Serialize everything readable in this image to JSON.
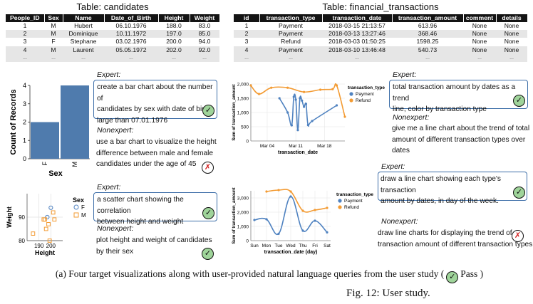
{
  "candidates_table": {
    "title": "Table: candidates",
    "columns": [
      "People_ID",
      "Sex",
      "Name",
      "Date_of_Birth",
      "Height",
      "Weight"
    ],
    "rows": [
      [
        "1",
        "M",
        "Hubert",
        "06.10.1976",
        "188.0",
        "83.0"
      ],
      [
        "2",
        "M",
        "Dominique",
        "10.11.1972",
        "197.0",
        "85.0"
      ],
      [
        "3",
        "F",
        "Stephane",
        "03.02.1976",
        "200.0",
        "94.0"
      ],
      [
        "4",
        "M",
        "Laurent",
        "05.05.1972",
        "202.0",
        "92.0"
      ],
      [
        "...",
        "...",
        "...",
        "...",
        "...",
        "..."
      ]
    ]
  },
  "transactions_table": {
    "title": "Table: financial_transactions",
    "columns": [
      "id",
      "transaction_type",
      "transaction_date",
      "transaction_amount",
      "comment",
      "details"
    ],
    "rows": [
      [
        "1",
        "Payment",
        "2018-03-15 21:13:57",
        "613.96",
        "None",
        "None"
      ],
      [
        "2",
        "Payment",
        "2018-03-13 13:27:46",
        "368.46",
        "None",
        "None"
      ],
      [
        "3",
        "Refund",
        "2018-03-03 01:50:25",
        "1598.25",
        "None",
        "None"
      ],
      [
        "4",
        "Payment",
        "2018-03-10 13:46:48",
        "540.73",
        "None",
        "None"
      ],
      [
        "...",
        "...",
        "...",
        "...",
        "...",
        "..."
      ]
    ]
  },
  "queries": {
    "q1": {
      "expert_label": "Expert:",
      "expert_lines": [
        "create a bar chart about the number of",
        "candidates by sex with date of birth",
        "large than 07.01.1976"
      ],
      "expert_result": "pass",
      "nonexpert_label": "Nonexpert:",
      "nonexpert_lines": [
        "use a bar chart to visualize the height",
        "difference between male and female",
        "candidates under the age of 45"
      ],
      "nonexpert_result": "fail"
    },
    "q2": {
      "expert_label": "Expert:",
      "expert_lines": [
        "a scatter chart showing the correlation",
        "between height and weight"
      ],
      "expert_result": "pass",
      "nonexpert_label": "Nonexpert:",
      "nonexpert_lines": [
        "plot height and weight of candidates",
        "by their sex"
      ],
      "nonexpert_result": "pass"
    },
    "q3": {
      "expert_label": "Expert:",
      "expert_lines": [
        "total transaction amount by dates as a trend",
        "line, color by transaction type"
      ],
      "expert_result": "pass",
      "nonexpert_label": "Nonexpert:",
      "nonexpert_lines": [
        "give me a line chart about the trend of total",
        "amount of different transaction types over",
        "dates"
      ],
      "nonexpert_result": "none"
    },
    "q4": {
      "expert_label": "Expert:",
      "expert_lines": [
        "draw a line chart showing each type's transaction",
        "amount by dates, in day of the week."
      ],
      "expert_result": "pass",
      "nonexpert_label": "Nonexpert:",
      "nonexpert_lines": [
        "draw line charts for displaying the trend of",
        "transaction amount of different transaction types"
      ],
      "nonexpert_result": "fail"
    }
  },
  "marks": {
    "pass": "✓",
    "fail": "✗"
  },
  "colors": {
    "bar": "#4f7bad",
    "payment": "#4f82c0",
    "refund": "#f39b33",
    "box": "#3d6ea8",
    "pass_fill": "#9fd49a",
    "fail": "#d32020"
  },
  "caption": {
    "subcaption": "(a) Four target visualizations along with user-provided natural language queries from the user study (",
    "pass_label": "Pass )",
    "figure": "Fig. 12: User study."
  },
  "chart_data": [
    {
      "type": "bar",
      "categories": [
        "F",
        "M"
      ],
      "values": [
        2,
        4
      ],
      "xlabel": "Sex",
      "ylabel": "Count of Records",
      "ylim": [
        0,
        4
      ],
      "yticks": [
        0,
        1,
        2,
        3,
        4
      ]
    },
    {
      "type": "scatter",
      "xlabel": "Height",
      "ylabel": "Weight",
      "xlim": [
        180,
        210
      ],
      "ylim": [
        80,
        100
      ],
      "xticks": [
        190,
        200
      ],
      "yticks": [
        80,
        90
      ],
      "legend_title": "Sex",
      "legend_position": "right",
      "series": [
        {
          "name": "F",
          "shape": "circle",
          "points": [
            [
              197,
              90
            ],
            [
              200,
              94
            ]
          ]
        },
        {
          "name": "M",
          "shape": "square",
          "points": [
            [
              185,
              83
            ],
            [
              194,
              89
            ],
            [
              195,
              89
            ],
            [
              196,
              85
            ],
            [
              198,
              87
            ],
            [
              199,
              80
            ],
            [
              202,
              92
            ],
            [
              203,
              89
            ]
          ]
        }
      ]
    },
    {
      "type": "line",
      "xlabel": "transaction_date",
      "ylabel": "Sum of transaction_amount",
      "ylim": [
        0,
        2000
      ],
      "yticks": [
        0,
        500,
        1000,
        1500,
        2000
      ],
      "xlim": [
        "2018-02-28",
        "2018-03-23"
      ],
      "xtick_labels": [
        [
          "2018-03-04",
          "Mar 04"
        ],
        [
          "2018-03-11",
          "Mar 11"
        ],
        [
          "2018-03-18",
          "Mar 18"
        ]
      ],
      "legend_title": "transaction_type",
      "legend_position": "top-right",
      "series": [
        {
          "name": "Payment",
          "points": [
            [
              "2018-03-07",
              1500
            ],
            [
              "2018-03-09",
              1000
            ],
            [
              "2018-03-10",
              550
            ],
            [
              "2018-03-10 12:00",
              1550
            ],
            [
              "2018-03-11",
              1450
            ],
            [
              "2018-03-11 12:00",
              380
            ],
            [
              "2018-03-12",
              1500
            ],
            [
              "2018-03-12 12:00",
              1420
            ],
            [
              "2018-03-13",
              1200
            ],
            [
              "2018-03-13 12:00",
              1300
            ],
            [
              "2018-03-14",
              560
            ],
            [
              "2018-03-15",
              700
            ],
            [
              "2018-03-21",
              1250
            ]
          ]
        },
        {
          "name": "Refund",
          "points": [
            [
              "2018-02-28",
              1950
            ],
            [
              "2018-03-02",
              1650
            ],
            [
              "2018-03-05",
              1870
            ],
            [
              "2018-03-09",
              1870
            ],
            [
              "2018-03-13",
              1720
            ],
            [
              "2018-03-17",
              1800
            ],
            [
              "2018-03-20",
              1820
            ],
            [
              "2018-03-21",
              1950
            ],
            [
              "2018-03-23",
              850
            ]
          ]
        }
      ]
    },
    {
      "type": "line",
      "xlabel": "transaction_date (day)",
      "ylabel": "Sum of transaction_amount",
      "ylim": [
        0,
        3500
      ],
      "yticks": [
        0,
        1000,
        2000,
        3000
      ],
      "categories": [
        "Sun",
        "Mon",
        "Tue",
        "Wed",
        "Thu",
        "Fri",
        "Sat"
      ],
      "legend_title": "transaction_type",
      "legend_position": "top-right",
      "series": [
        {
          "name": "Payment",
          "values": [
            1450,
            1500,
            480,
            3100,
            700,
            1400,
            580
          ]
        },
        {
          "name": "Refund",
          "values": [
            null,
            3450,
            3550,
            3450,
            2100,
            2150,
            2300
          ]
        }
      ]
    }
  ]
}
